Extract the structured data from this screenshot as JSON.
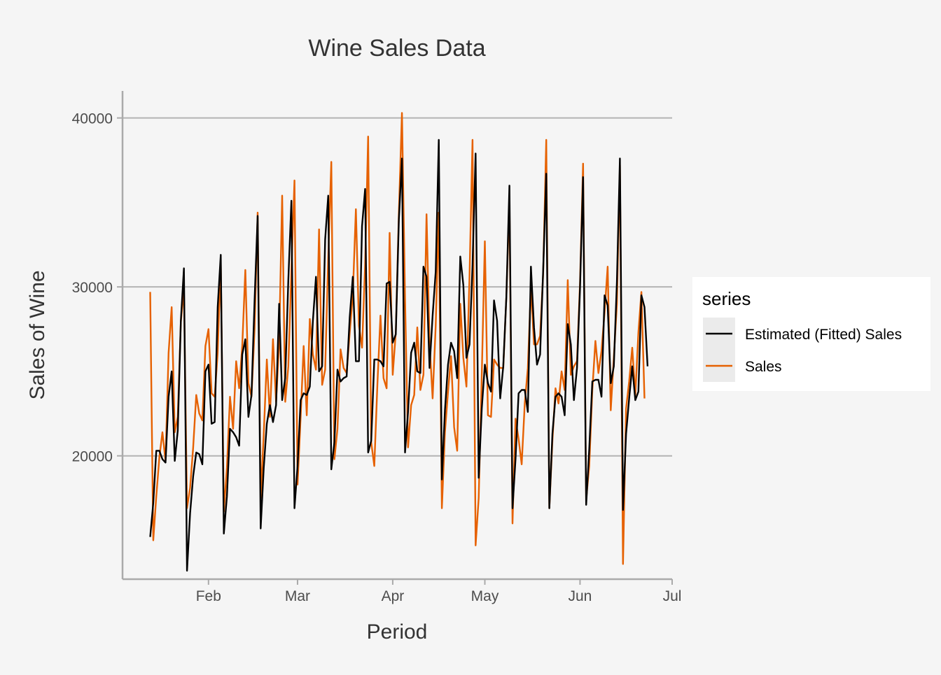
{
  "chart_data": {
    "type": "line",
    "title": "Wine Sales Data",
    "xlabel": "Period",
    "ylabel": "Sales of Wine",
    "x_tick_labels": [
      "Feb",
      "Mar",
      "Apr",
      "May",
      "Jun",
      "Jul"
    ],
    "x_tick_dates": [
      "2016-02-01",
      "2016-03-01",
      "2016-04-01",
      "2016-05-01",
      "2016-06-01",
      "2016-07-01"
    ],
    "x_start_date": "2016-01-13",
    "x_step_days": 1,
    "xlim": [
      "2016-01-04",
      "2016-07-01"
    ],
    "y_ticks": [
      20000,
      30000,
      40000
    ],
    "y_tick_labels": [
      "20000",
      "30000",
      "40000"
    ],
    "ylim": [
      12700,
      41600
    ],
    "grid": "horizontal major",
    "legend": {
      "title": "series",
      "position": "right"
    },
    "series": [
      {
        "name": "Estimated (Fitted) Sales",
        "color": "#000000",
        "values": [
          15200,
          17200,
          20300,
          20300,
          19800,
          19600,
          23500,
          25000,
          19700,
          21500,
          28000,
          31100,
          13200,
          16600,
          18800,
          20200,
          20100,
          19500,
          25000,
          25400,
          21900,
          22000,
          28800,
          31900,
          15400,
          17600,
          21600,
          21400,
          21100,
          20600,
          26000,
          26900,
          22300,
          23600,
          29200,
          34200,
          15700,
          19300,
          21900,
          23000,
          22000,
          23000,
          29000,
          23300,
          24600,
          30400,
          35100,
          16900,
          19400,
          23300,
          23700,
          23600,
          24100,
          28000,
          30600,
          25000,
          25300,
          32800,
          35400,
          19200,
          20800,
          25100,
          24400,
          24600,
          24700,
          28200,
          30600,
          25600,
          25600,
          33600,
          35800,
          20200,
          20900,
          25700,
          25700,
          25600,
          25300,
          30200,
          30300,
          26700,
          27200,
          34000,
          37600,
          20200,
          22600,
          26100,
          26700,
          25000,
          24900,
          31200,
          30600,
          25200,
          28300,
          30900,
          38700,
          18600,
          22700,
          25400,
          26700,
          26200,
          24600,
          31800,
          30100,
          25800,
          26600,
          31300,
          37900,
          18700,
          22800,
          25400,
          24300,
          23800,
          29200,
          28000,
          23400,
          25300,
          29400,
          36000,
          16900,
          19800,
          23700,
          23900,
          23900,
          22600,
          31200,
          27600,
          25400,
          26000,
          31000,
          36700,
          16900,
          21300,
          23500,
          23700,
          23500,
          22400,
          27800,
          26600,
          23300,
          25200,
          29900,
          36500,
          17100,
          20400,
          24400,
          24500,
          24500,
          23500,
          29500,
          28900,
          24300,
          25300,
          30300,
          37600,
          16800,
          21300,
          23400,
          25300,
          23300,
          23800,
          29500,
          28800,
          25300
        ]
      },
      {
        "name": "Sales",
        "color": "#e66101",
        "values": [
          29700,
          15000,
          17600,
          19900,
          21400,
          19700,
          26100,
          28800,
          21400,
          22300,
          27900,
          29900,
          16900,
          18100,
          20500,
          23600,
          22500,
          22100,
          26500,
          27500,
          23700,
          23500,
          26100,
          31400,
          16700,
          19300,
          23500,
          21600,
          25600,
          24000,
          26500,
          31000,
          24300,
          23500,
          27500,
          34400,
          17500,
          21300,
          25700,
          22300,
          26900,
          23200,
          26700,
          35400,
          23200,
          25300,
          31000,
          36300,
          18300,
          22300,
          26500,
          22400,
          28100,
          26000,
          25100,
          33400,
          24200,
          25100,
          31700,
          37400,
          19800,
          21600,
          26300,
          25200,
          24900,
          27300,
          29500,
          34600,
          27700,
          26400,
          31300,
          38900,
          20800,
          19400,
          24200,
          28300,
          24600,
          24000,
          33200,
          24800,
          27300,
          34400,
          40300,
          29300,
          20500,
          23000,
          23600,
          27600,
          23900,
          24800,
          34300,
          26700,
          23400,
          27700,
          34400,
          16900,
          21400,
          23800,
          25900,
          21700,
          20300,
          29000,
          25800,
          24100,
          30600,
          38700,
          14700,
          17500,
          24800,
          32700,
          22400,
          22300,
          25700,
          25400,
          25200,
          25200,
          29400,
          35100,
          16000,
          22200,
          21000,
          19500,
          23100,
          25200,
          30000,
          26600,
          26600,
          27100,
          30800,
          38700,
          16900,
          20900,
          24000,
          23100,
          25000,
          23900,
          30400,
          24800,
          25300,
          25600,
          30200,
          37300,
          17400,
          19400,
          23900,
          26800,
          24900,
          26200,
          28500,
          31200,
          22700,
          25800,
          29000,
          37200,
          13600,
          22800,
          24400,
          26400,
          23600,
          27300,
          29700,
          23400
        ]
      }
    ]
  }
}
